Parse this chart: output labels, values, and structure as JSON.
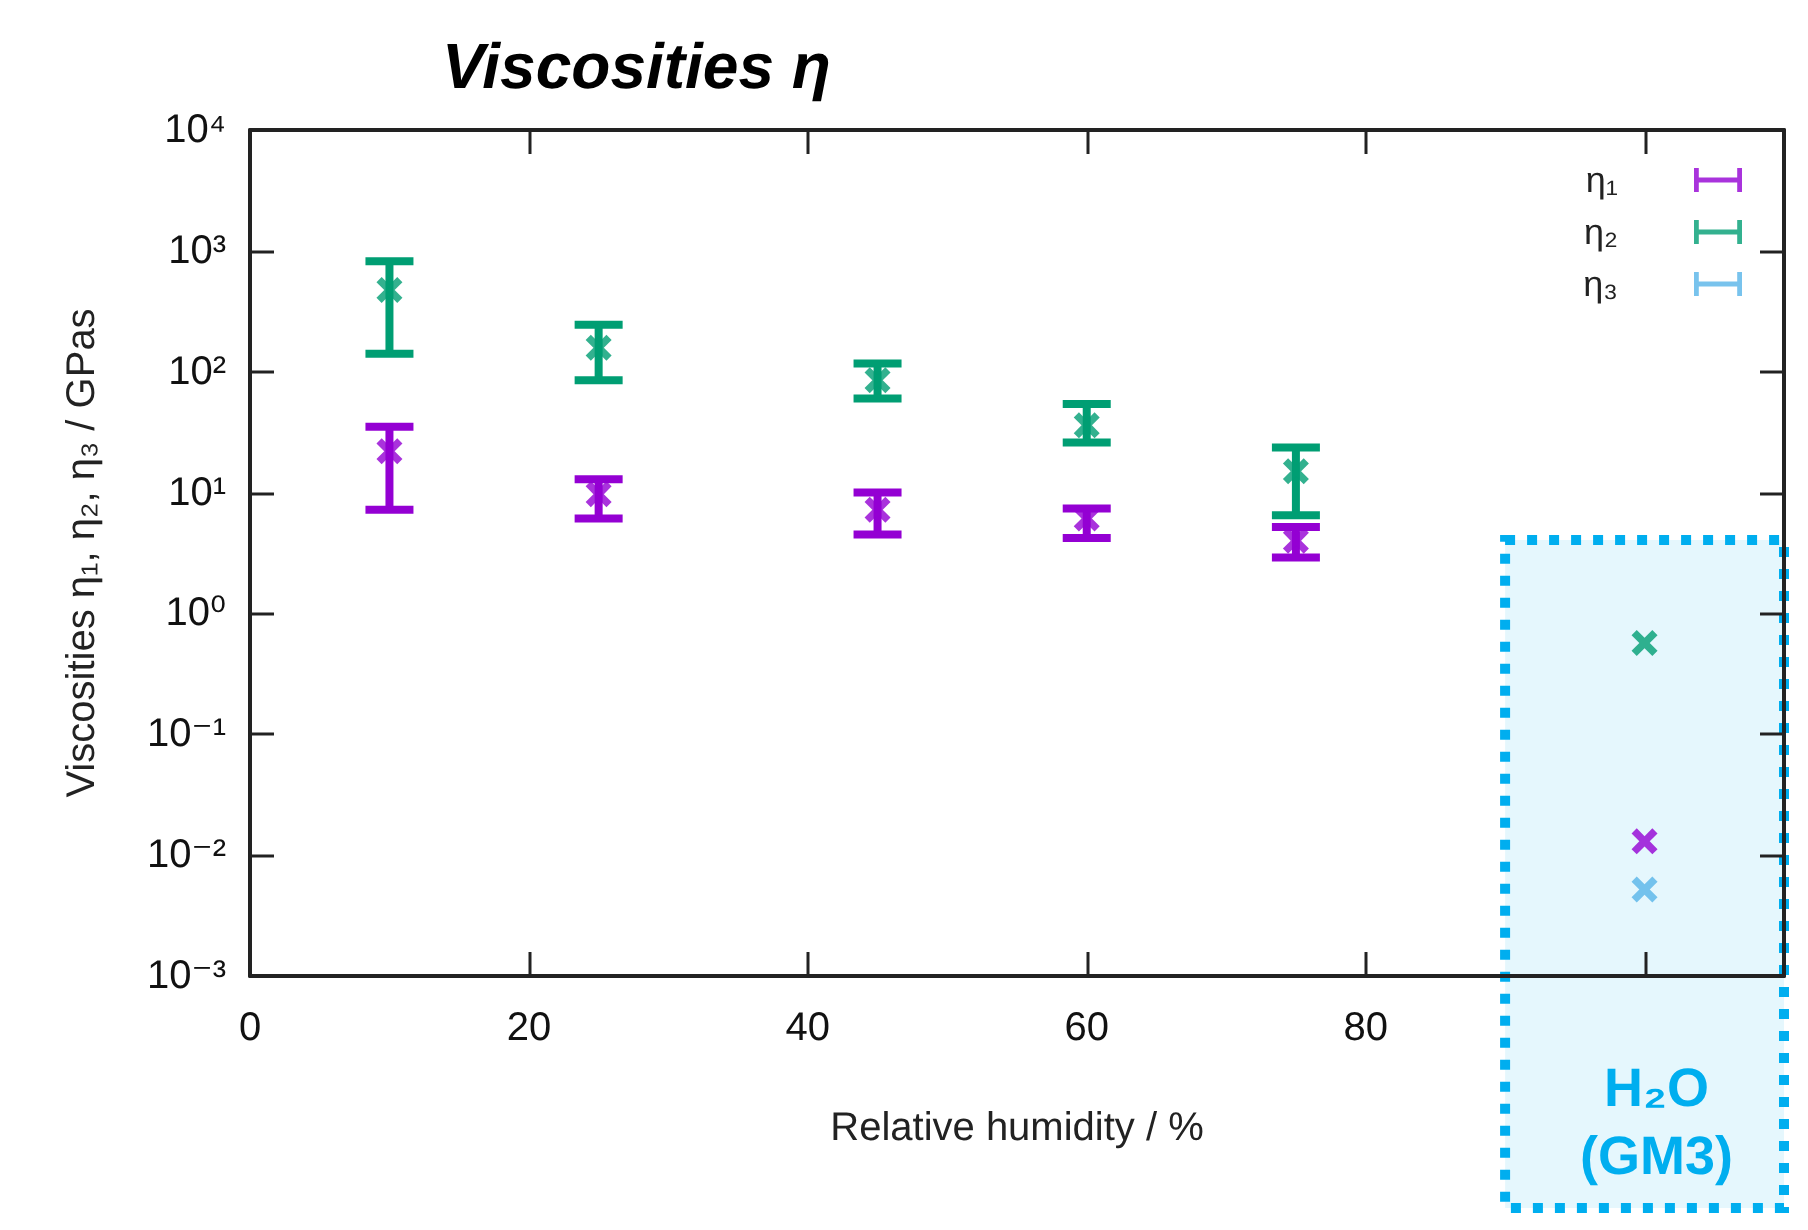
{
  "chart_data": {
    "type": "scatter",
    "title": "Viscosities η",
    "xlabel": "Relative humidity / %",
    "ylabel": "Viscosities η₁, η₂, η₃ / GPas",
    "x": [
      10,
      25,
      45,
      60,
      75,
      100
    ],
    "series": [
      {
        "name": "η₁",
        "color": "#9400d3",
        "values": [
          22,
          9.7,
          7.2,
          6.1,
          4,
          0.013
        ],
        "errors": [
          [
            7.2,
            35
          ],
          [
            6.1,
            12.9
          ],
          [
            4.5,
            10
          ],
          [
            4.2,
            7.4
          ],
          [
            2.9,
            5.2
          ],
          null
        ]
      },
      {
        "name": "η₂",
        "color": "#009e73",
        "values": [
          475,
          158,
          85,
          36,
          15,
          0.57
        ],
        "errors": [
          [
            141,
            820
          ],
          [
            85,
            245
          ],
          [
            60,
            117
          ],
          [
            26,
            54
          ],
          [
            6.5,
            23.6
          ],
          null
        ]
      },
      {
        "name": "η₃",
        "color": "#56b4e9",
        "values": [
          null,
          null,
          null,
          null,
          null,
          0.0052
        ]
      }
    ],
    "xlim": [
      0,
      110
    ],
    "xticks": [
      0,
      20,
      40,
      60,
      80,
      {
        "value": 100,
        "label": null
      }
    ],
    "ylim": [
      0.001,
      10000
    ],
    "yticks": [
      {
        "value": 0.001,
        "label": "10⁻³"
      },
      {
        "value": 0.01,
        "label": "10⁻²"
      },
      {
        "value": 0.1,
        "label": "10⁻¹"
      },
      {
        "value": 1,
        "label": "10⁰"
      },
      {
        "value": 10,
        "label": "10¹"
      },
      {
        "value": 100,
        "label": "10²"
      },
      {
        "value": 1000,
        "label": "10³"
      },
      {
        "value": 10000,
        "label": "10⁴"
      }
    ],
    "log": "y",
    "grid": false,
    "legend": "top right",
    "marker": "cross",
    "bands": [
      {
        "axis": "x",
        "from": 90,
        "to": 110,
        "label": "H₂O (GM3)",
        "color": "#00aeef"
      }
    ]
  }
}
